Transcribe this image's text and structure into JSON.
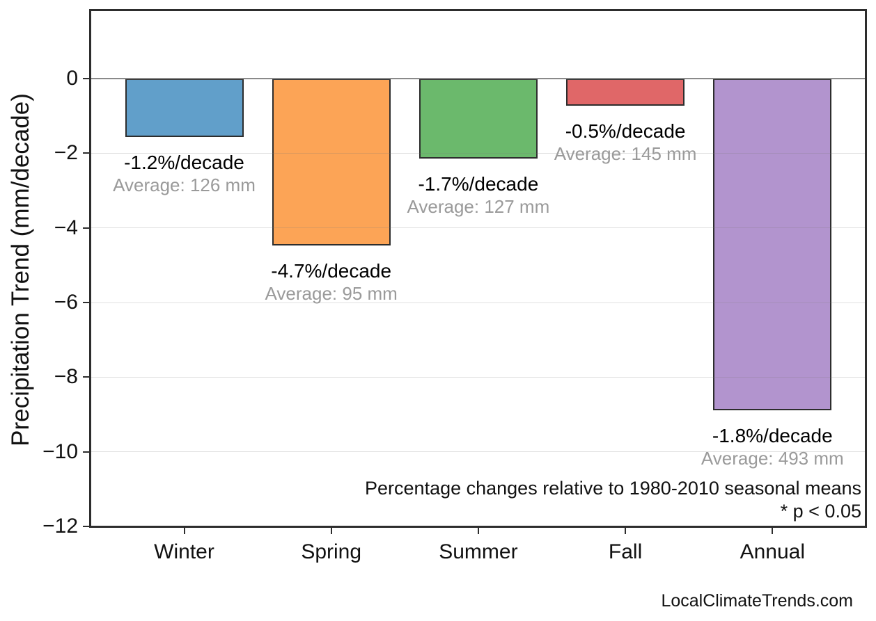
{
  "chart_data": {
    "type": "bar",
    "title": "",
    "ylabel": "Precipitation Trend (mm/decade)",
    "categories": [
      "Winter",
      "Spring",
      "Summer",
      "Fall",
      "Annual"
    ],
    "series": [
      {
        "name": "Precipitation trend",
        "values_mm_per_decade": [
          -1.57,
          -4.47,
          -2.15,
          -0.73,
          -8.88
        ],
        "percent_per_decade": [
          -1.2,
          -4.7,
          -1.7,
          -0.5,
          -1.8
        ],
        "average_mm": [
          126,
          95,
          127,
          145,
          493
        ]
      }
    ],
    "bar_value_labels": [
      "-1.2%/decade",
      "-4.7%/decade",
      "-1.7%/decade",
      "-0.5%/decade",
      "-1.8%/decade"
    ],
    "bar_avg_labels": [
      "Average: 126 mm",
      "Average: 95 mm",
      "Average: 127 mm",
      "Average: 145 mm",
      "Average: 493 mm"
    ],
    "bar_colors": [
      "#619FCA",
      "#FCA456",
      "#6BB96C",
      "#E06768",
      "#B294CE"
    ],
    "bar_edge_color": "#2d2d2d",
    "ylim": [
      -12.2,
      1.86
    ],
    "yticks": [
      0,
      -2,
      -4,
      -6,
      -8,
      -10,
      -12
    ],
    "ytick_labels": [
      "0",
      "−2",
      "−4",
      "−6",
      "−8",
      "−10",
      "−12"
    ],
    "grid": "horizontal-light",
    "gridline_color": "rgba(120,120,120,0.22)",
    "zero_line_color": "#8a8a8a",
    "avg_label_color": "#9a9a9a",
    "legend_position": "none",
    "annotations": [
      "Percentage changes relative to 1980-2010 seasonal means",
      "* p < 0.05"
    ],
    "watermark": "LocalClimateTrends.com"
  }
}
